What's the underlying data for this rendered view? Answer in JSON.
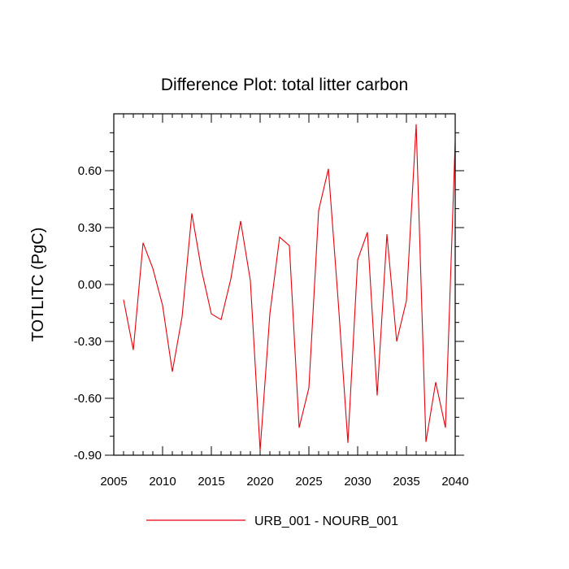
{
  "chart_data": {
    "type": "line",
    "title": "Difference Plot: total litter carbon",
    "xlabel": "",
    "ylabel": "TOTLITC  (PgC)",
    "xlim": [
      2005,
      2040
    ],
    "ylim": [
      -0.9,
      0.9
    ],
    "x_ticks": [
      2005,
      2010,
      2015,
      2020,
      2025,
      2030,
      2035,
      2040
    ],
    "x_tick_labels": [
      "2005",
      "2010",
      "2015",
      "2020",
      "2025",
      "2030",
      "2035",
      "2040"
    ],
    "y_ticks": [
      -0.9,
      -0.6,
      -0.3,
      0.0,
      0.3,
      0.6
    ],
    "y_tick_labels": [
      "-0.90",
      "-0.60",
      "-0.30",
      "0.00",
      "0.30",
      "0.60"
    ],
    "grid": false,
    "legend_position": "bottom",
    "series": [
      {
        "name": "URB_001 - NOURB_001",
        "color": "#e8000b",
        "x": [
          2006,
          2007,
          2008,
          2009,
          2010,
          2011,
          2012,
          2013,
          2014,
          2015,
          2016,
          2017,
          2018,
          2019,
          2020,
          2021,
          2022,
          2023,
          2024,
          2025,
          2026,
          2027,
          2028,
          2029,
          2030,
          2031,
          2032,
          2033,
          2034,
          2035,
          2036,
          2037,
          2038,
          2039,
          2040
        ],
        "values": [
          -0.08,
          -0.345,
          0.22,
          0.085,
          -0.11,
          -0.46,
          -0.17,
          0.375,
          0.075,
          -0.155,
          -0.185,
          0.03,
          0.335,
          0.02,
          -0.875,
          -0.155,
          0.25,
          0.205,
          -0.755,
          -0.545,
          0.39,
          0.61,
          -0.085,
          -0.835,
          0.13,
          0.275,
          -0.585,
          0.265,
          -0.3,
          -0.085,
          0.845,
          -0.83,
          -0.515,
          -0.755,
          0.755
        ]
      }
    ]
  }
}
